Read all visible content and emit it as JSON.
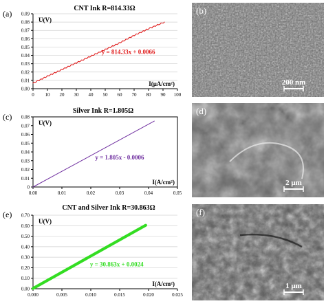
{
  "chart_data": [
    {
      "type": "line",
      "panel_label": "(a)",
      "title": "CNT Ink    R=814.33Ω",
      "ylabel": "U(V)",
      "xlabel": "I(μA/cm²)",
      "equation": "y = 814.33x + 0.0066",
      "color": "#e02020",
      "xlim": [
        0,
        100
      ],
      "ylim": [
        0,
        0.09
      ],
      "xticks": [
        "0",
        "10",
        "20",
        "30",
        "40",
        "50",
        "60",
        "70",
        "80",
        "90",
        "100"
      ],
      "yticks": [
        "0.00",
        "0.01",
        "0.02",
        "0.03",
        "0.04",
        "0.05",
        "0.06",
        "0.07",
        "0.08",
        "0.09"
      ],
      "grid": "horizontal",
      "series": [
        {
          "x": [
            0,
            10,
            20,
            30,
            40,
            50,
            60,
            70,
            80,
            91
          ],
          "y": [
            0.0066,
            0.015,
            0.023,
            0.031,
            0.039,
            0.047,
            0.055,
            0.064,
            0.072,
            0.08
          ]
        }
      ]
    },
    {
      "type": "line",
      "panel_label": "(c)",
      "title": "Silver Ink    R=1.805Ω",
      "ylabel": "U(V)",
      "xlabel": "I(A/cm²)",
      "equation": "y = 1.805x - 0.0006",
      "color": "#7030a0",
      "xlim": [
        0,
        0.05
      ],
      "ylim": [
        0,
        0.08
      ],
      "xticks": [
        "0.00",
        "0.01",
        "0.02",
        "0.03",
        "0.04",
        "0.05"
      ],
      "yticks": [
        "0",
        "0.01",
        "0.02",
        "0.03",
        "0.04",
        "0.05",
        "0.06",
        "0.07",
        "0.08"
      ],
      "grid": "none",
      "series": [
        {
          "x": [
            0,
            0.042
          ],
          "y": [
            0,
            0.0752
          ]
        }
      ]
    },
    {
      "type": "line",
      "panel_label": "(e)",
      "title": "CNT and Silver Ink    R=30.863Ω",
      "ylabel": "U(V)",
      "xlabel": "I(A/cm²)",
      "equation": "y = 30.863x + 0.0024",
      "color": "#33dd22",
      "xlim": [
        0,
        0.025
      ],
      "ylim": [
        0,
        0.7
      ],
      "xticks": [
        "0.000",
        "0.005",
        "0.010",
        "0.015",
        "0.020",
        "0.025"
      ],
      "yticks": [
        "0.00",
        "0.10",
        "0.20",
        "0.30",
        "0.40",
        "0.50",
        "0.60",
        "0.70"
      ],
      "grid": "horizontal",
      "series": [
        {
          "x": [
            0,
            0.0195
          ],
          "y": [
            0.0024,
            0.604
          ]
        }
      ]
    }
  ],
  "sem_images": [
    {
      "panel_label": "(b)",
      "scale_label": "200 nm",
      "tone": "fine"
    },
    {
      "panel_label": "(d)",
      "scale_label": "2 μm",
      "tone": "flakes"
    },
    {
      "panel_label": "(f)",
      "scale_label": "1 μm",
      "tone": "mixed"
    }
  ]
}
